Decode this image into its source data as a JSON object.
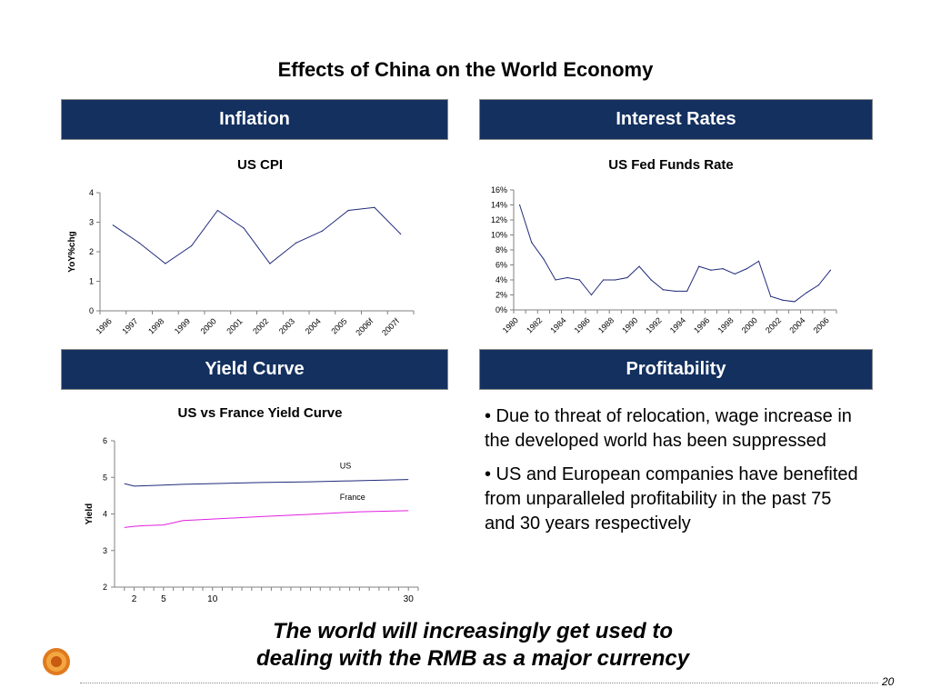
{
  "slide": {
    "title": "Effects of China on the World Economy",
    "page_number": "20",
    "footer_line1": "The world will increasingly get used to",
    "footer_line2": "dealing with the RMB as a major currency"
  },
  "sections": {
    "inflation": "Inflation",
    "interest_rates": "Interest Rates",
    "yield_curve": "Yield Curve",
    "profitability": "Profitability"
  },
  "profitability": {
    "bullets": [
      "• Due to threat of relocation, wage increase in the developed world has been suppressed",
      "• US and European companies have benefited from unparalleled profitability in the past 75 and 30 years respectively"
    ]
  },
  "colors": {
    "banner": "#13305f",
    "us_line": "#1f2a7a",
    "france_line": "#e020e0"
  },
  "chart_data": [
    {
      "type": "line",
      "title": "US CPI",
      "ylabel": "YoY%chg",
      "xlabel": "",
      "categories": [
        "1996",
        "1997",
        "1998",
        "1999",
        "2000",
        "2001",
        "2002",
        "2003",
        "2004",
        "2005",
        "2006f",
        "2007f"
      ],
      "series": [
        {
          "values": [
            2.9,
            2.3,
            1.6,
            2.2,
            3.4,
            2.8,
            1.6,
            2.3,
            2.7,
            3.4,
            3.5,
            2.6
          ]
        }
      ],
      "ylim": [
        0,
        4
      ],
      "yticks": [
        "0",
        "1",
        "2",
        "3",
        "4"
      ],
      "grid": false
    },
    {
      "type": "line",
      "title": "US Fed Funds Rate",
      "ylabel": "",
      "xlabel": "",
      "categories": [
        "1980",
        "1981",
        "1982",
        "1983",
        "1984",
        "1985",
        "1986",
        "1987",
        "1988",
        "1989",
        "1990",
        "1991",
        "1992",
        "1993",
        "1994",
        "1995",
        "1996",
        "1997",
        "1998",
        "1999",
        "2000",
        "2001",
        "2002",
        "2003",
        "2004",
        "2005",
        "2006"
      ],
      "xtick_labels": [
        "1980",
        "1982",
        "1984",
        "1986",
        "1988",
        "1990",
        "1992",
        "1994",
        "1996",
        "1998",
        "2000",
        "2002",
        "2004",
        "2006"
      ],
      "series": [
        {
          "values": [
            14.0,
            9.0,
            6.8,
            4.0,
            4.3,
            4.0,
            2.0,
            4.0,
            4.0,
            4.3,
            5.8,
            4.0,
            2.7,
            2.5,
            2.5,
            5.8,
            5.3,
            5.5,
            4.8,
            5.5,
            6.5,
            1.8,
            1.3,
            1.1,
            2.3,
            3.3,
            5.3
          ]
        }
      ],
      "ylim": [
        0,
        16
      ],
      "yticks": [
        "0%",
        "2%",
        "4%",
        "6%",
        "8%",
        "10%",
        "12%",
        "14%",
        "16%"
      ],
      "grid": false
    },
    {
      "type": "line",
      "title": "US vs France Yield Curve",
      "ylabel": "Yield",
      "xlabel": "",
      "xticks": [
        "2",
        "5",
        "10",
        "30"
      ],
      "xlim": [
        0,
        31
      ],
      "ylim": [
        2,
        6
      ],
      "yticks": [
        "2",
        "3",
        "4",
        "5",
        "6"
      ],
      "series": [
        {
          "name": "US",
          "x": [
            1,
            2,
            3,
            5,
            7,
            10,
            15,
            20,
            25,
            30
          ],
          "values": [
            4.83,
            4.76,
            4.77,
            4.79,
            4.81,
            4.83,
            4.86,
            4.88,
            4.91,
            4.94
          ]
        },
        {
          "name": "France",
          "x": [
            1,
            2,
            3,
            5,
            7,
            10,
            15,
            20,
            25,
            30
          ],
          "values": [
            3.63,
            3.66,
            3.68,
            3.7,
            3.82,
            3.86,
            3.93,
            3.99,
            4.06,
            4.09
          ]
        }
      ],
      "grid": false
    }
  ]
}
